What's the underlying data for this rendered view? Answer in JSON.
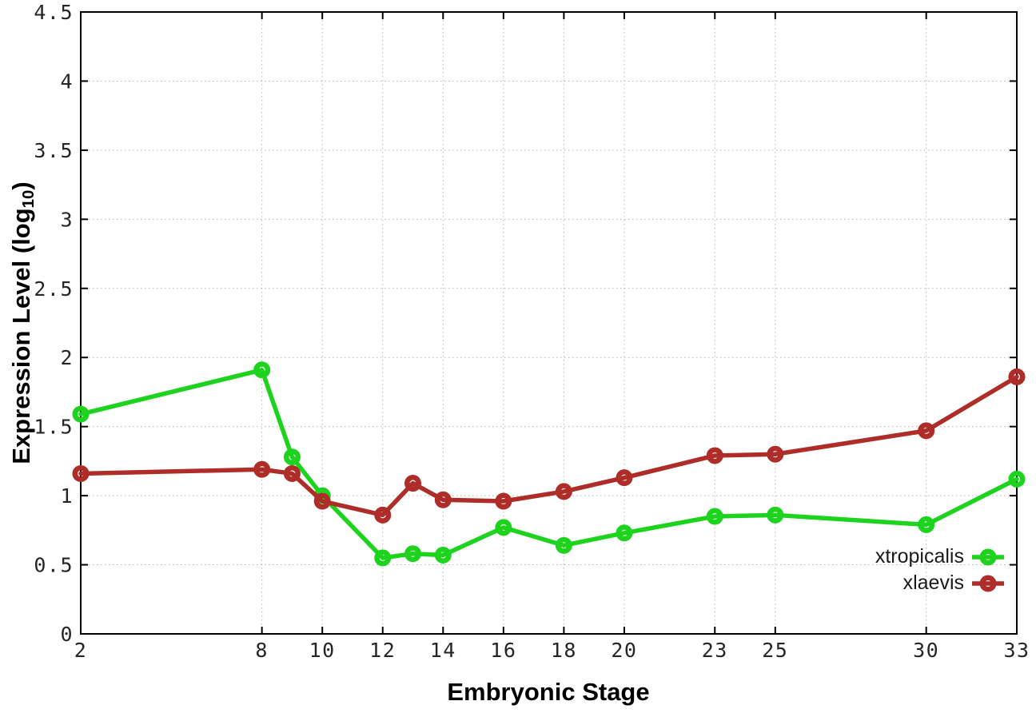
{
  "chart_data": {
    "type": "line",
    "title": "",
    "xlabel": "Embryonic Stage",
    "ylabel": {
      "prefix": "Expression Level (log",
      "subscript": "10",
      "suffix": ")"
    },
    "x": [
      2,
      8,
      9,
      10,
      12,
      13,
      14,
      16,
      18,
      20,
      23,
      25,
      30,
      33
    ],
    "xlim": [
      2,
      33
    ],
    "ylim": [
      0,
      4.5
    ],
    "xticks": [
      2,
      8,
      10,
      12,
      14,
      16,
      18,
      20,
      23,
      25,
      30,
      33
    ],
    "xtick_labels": [
      "2",
      "8",
      "10",
      "12",
      "14",
      "16",
      "18",
      "20",
      "23",
      "25",
      "30",
      "33"
    ],
    "yticks": [
      0,
      0.5,
      1,
      1.5,
      2,
      2.5,
      3,
      3.5,
      4,
      4.5
    ],
    "ytick_labels": [
      "0",
      "0.5",
      "1",
      "1.5",
      "2",
      "2.5",
      "3",
      "3.5",
      "4",
      "4.5"
    ],
    "grid": true,
    "grid_style": "dotted",
    "marker": "open-circle",
    "legend_position": "inside-bottom-right",
    "series": [
      {
        "name": "xtropicalis",
        "color": "#1dd31d",
        "values": [
          1.59,
          1.91,
          1.28,
          1.0,
          0.55,
          0.58,
          0.57,
          0.77,
          0.64,
          0.73,
          0.85,
          0.86,
          0.79,
          1.12
        ]
      },
      {
        "name": "xlaevis",
        "color": "#af2d28",
        "values": [
          1.16,
          1.19,
          1.16,
          0.96,
          0.86,
          1.09,
          0.97,
          0.96,
          1.03,
          1.13,
          1.29,
          1.3,
          1.47,
          1.86
        ]
      }
    ],
    "colors": {
      "grid": "#b5b5b5",
      "axis": "#000000",
      "tick_text": "#262626"
    }
  }
}
